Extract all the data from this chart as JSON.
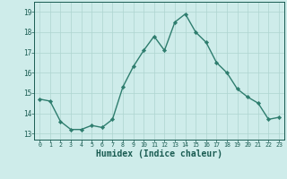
{
  "x": [
    0,
    1,
    2,
    3,
    4,
    5,
    6,
    7,
    8,
    9,
    10,
    11,
    12,
    13,
    14,
    15,
    16,
    17,
    18,
    19,
    20,
    21,
    22,
    23
  ],
  "y": [
    14.7,
    14.6,
    13.6,
    13.2,
    13.2,
    13.4,
    13.3,
    13.7,
    15.3,
    16.3,
    17.1,
    17.8,
    17.1,
    18.5,
    18.9,
    18.0,
    17.5,
    16.5,
    16.0,
    15.2,
    14.8,
    14.5,
    13.7,
    13.8
  ],
  "line_color": "#2e7d6e",
  "marker": "D",
  "marker_size": 2.2,
  "line_width": 1.0,
  "bg_color": "#ceecea",
  "grid_color": "#aed4d0",
  "tick_color": "#1a5c52",
  "xlabel": "Humidex (Indice chaleur)",
  "xlabel_fontsize": 7,
  "ylabel_ticks": [
    13,
    14,
    15,
    16,
    17,
    18,
    19
  ],
  "ylim": [
    12.7,
    19.5
  ],
  "xlim": [
    -0.5,
    23.5
  ]
}
